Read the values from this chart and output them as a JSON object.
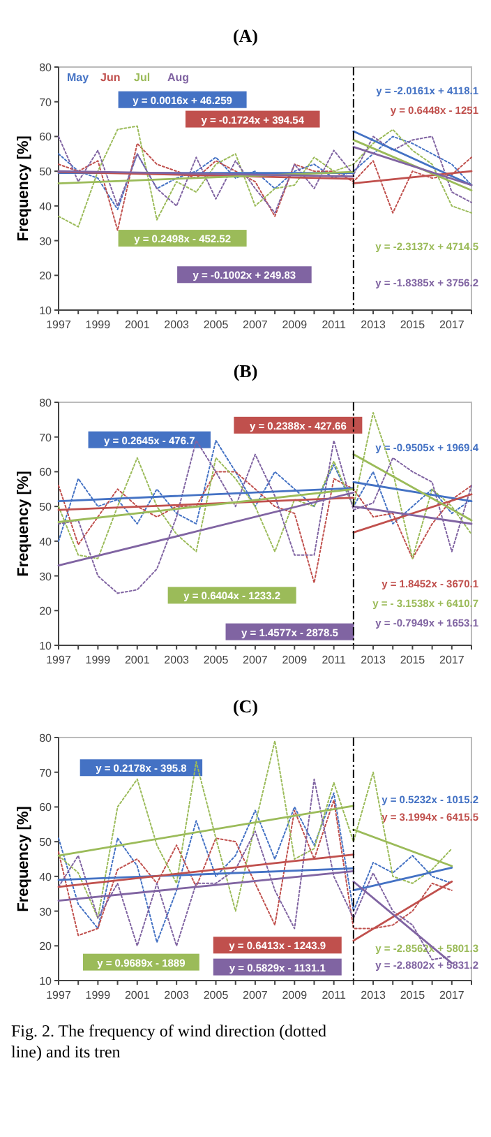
{
  "chart_data": [
    {
      "type": "line",
      "title": "(A)",
      "ylabel": "Frequency [%]",
      "xlim": [
        1997,
        2018
      ],
      "ylim": [
        10,
        80
      ],
      "yticks": [
        10,
        20,
        30,
        40,
        50,
        60,
        70,
        80
      ],
      "xticks": [
        1997,
        {
          "value": 1998,
          "label": null
        },
        1999,
        {
          "value": 2000,
          "label": null
        },
        2001,
        {
          "value": 2002,
          "label": null
        },
        2003,
        {
          "value": 2004,
          "label": null
        },
        2005,
        {
          "value": 2006,
          "label": null
        },
        2007,
        {
          "value": 2008,
          "label": null
        },
        2009,
        {
          "value": 2010,
          "label": null
        },
        2011,
        {
          "value": 2012,
          "label": null
        },
        2013,
        {
          "value": 2014,
          "label": null
        },
        2015,
        {
          "value": 2016,
          "label": null
        },
        2017,
        {
          "value": 2018,
          "label": null
        }
      ],
      "x": [
        1997,
        1998,
        1999,
        2000,
        2001,
        2002,
        2003,
        2004,
        2005,
        2006,
        2007,
        2008,
        2009,
        2010,
        2011,
        2012,
        2013,
        2014,
        2015,
        2016,
        2017,
        2018
      ],
      "legend": "top left",
      "grid": false,
      "marker": "none",
      "ref_lines": [
        {
          "axis": "x",
          "value": 2012,
          "color": "#000000",
          "line_style": "dashed"
        }
      ],
      "series": [
        {
          "name": "May",
          "color": "#4472c4",
          "line_style": "dotted",
          "values": [
            55,
            50,
            48,
            39,
            55,
            45,
            48,
            50,
            54,
            48,
            50,
            45,
            50,
            52,
            48,
            50,
            55,
            60,
            58,
            55,
            52,
            46
          ]
        },
        {
          "name": "Jun",
          "color": "#c0504d",
          "line_style": "dotted",
          "values": [
            52,
            50,
            53,
            33,
            58,
            52,
            50,
            48,
            53,
            50,
            47,
            37,
            52,
            50,
            50,
            47,
            53,
            38,
            50,
            48,
            49,
            54
          ]
        },
        {
          "name": "Jul",
          "color": "#9bbb59",
          "line_style": "dotted",
          "values": [
            37,
            34,
            50,
            62,
            63,
            36,
            47,
            44,
            52,
            55,
            40,
            45,
            46,
            54,
            50,
            52,
            58,
            62,
            56,
            52,
            40,
            38
          ]
        },
        {
          "name": "Aug",
          "color": "#8064a2",
          "line_style": "dotted",
          "values": [
            60,
            47,
            56,
            40,
            55,
            45,
            40,
            54,
            42,
            53,
            45,
            38,
            52,
            45,
            56,
            49,
            60,
            56,
            59,
            60,
            44,
            41
          ]
        },
        {
          "color": "#4472c4",
          "line_style": "solid",
          "x": [
            1997,
            2012
          ],
          "values": [
            49.5,
            49.5
          ]
        },
        {
          "color": "#c0504d",
          "line_style": "solid",
          "x": [
            1997,
            2012
          ],
          "values": [
            49.8,
            47.8
          ]
        },
        {
          "color": "#9bbb59",
          "line_style": "solid",
          "x": [
            1997,
            2012
          ],
          "values": [
            46.5,
            49.8
          ]
        },
        {
          "color": "#8064a2",
          "line_style": "solid",
          "x": [
            1997,
            2012
          ],
          "values": [
            50,
            48.5
          ]
        },
        {
          "color": "#4472c4",
          "line_style": "solid",
          "x": [
            2012,
            2018
          ],
          "values": [
            61.5,
            46
          ]
        },
        {
          "color": "#c0504d",
          "line_style": "solid",
          "x": [
            2012,
            2018
          ],
          "values": [
            46.5,
            50
          ]
        },
        {
          "color": "#9bbb59",
          "line_style": "solid",
          "x": [
            2012,
            2018
          ],
          "values": [
            59,
            44.5
          ]
        },
        {
          "color": "#8064a2",
          "line_style": "solid",
          "x": [
            2012,
            2018
          ],
          "values": [
            57,
            46
          ]
        }
      ],
      "annotations": [
        "y = 0.0016x + 46.259",
        "y = -0.1724x + 394.54",
        "y = 0.2498x - 452.52",
        "y = -0.1002x + 249.83",
        "y = -2.0161x + 4118.1",
        "y = 0.6448x - 1251",
        "y = -2.3137x + 4714.5",
        "y = -1.8385x + 3756.2"
      ]
    },
    {
      "type": "line",
      "title": "(B)",
      "ylabel": "Frequency [%]",
      "xlim": [
        1997,
        2018
      ],
      "ylim": [
        10,
        80
      ],
      "yticks": [
        10,
        20,
        30,
        40,
        50,
        60,
        70,
        80
      ],
      "xticks": [
        1997,
        {
          "value": 1998,
          "label": null
        },
        1999,
        {
          "value": 2000,
          "label": null
        },
        2001,
        {
          "value": 2002,
          "label": null
        },
        2003,
        {
          "value": 2004,
          "label": null
        },
        2005,
        {
          "value": 2006,
          "label": null
        },
        2007,
        {
          "value": 2008,
          "label": null
        },
        2009,
        {
          "value": 2010,
          "label": null
        },
        2011,
        {
          "value": 2012,
          "label": null
        },
        2013,
        {
          "value": 2014,
          "label": null
        },
        2015,
        {
          "value": 2016,
          "label": null
        },
        2017,
        {
          "value": 2018,
          "label": null
        }
      ],
      "x": [
        1997,
        1998,
        1999,
        2000,
        2001,
        2002,
        2003,
        2004,
        2005,
        2006,
        2007,
        2008,
        2009,
        2010,
        2011,
        2012,
        2013,
        2014,
        2015,
        2016,
        2017,
        2018
      ],
      "grid": false,
      "marker": "none",
      "ref_lines": [
        {
          "axis": "x",
          "value": 2012,
          "color": "#000000",
          "line_style": "dashed"
        }
      ],
      "series": [
        {
          "color": "#4472c4",
          "line_style": "dotted",
          "values": [
            40,
            58,
            50,
            52,
            45,
            55,
            48,
            45,
            69,
            60,
            50,
            60,
            55,
            50,
            62,
            50,
            60,
            45,
            50,
            55,
            48,
            52
          ]
        },
        {
          "color": "#c0504d",
          "line_style": "dotted",
          "values": [
            56,
            39,
            47,
            55,
            50,
            47,
            50,
            50,
            60,
            60,
            55,
            50,
            48,
            28,
            58,
            55,
            47,
            48,
            35,
            45,
            52,
            56
          ]
        },
        {
          "color": "#9bbb59",
          "line_style": "dotted",
          "values": [
            50,
            36,
            35,
            50,
            64,
            50,
            42,
            37,
            64,
            58,
            50,
            37,
            52,
            50,
            63,
            50,
            77,
            60,
            35,
            55,
            50,
            42
          ]
        },
        {
          "color": "#8064a2",
          "line_style": "dotted",
          "values": [
            45,
            46,
            30,
            25,
            26,
            32,
            47,
            69,
            60,
            50,
            65,
            53,
            36,
            36,
            69,
            49,
            51,
            64,
            60,
            57,
            37,
            56
          ]
        },
        {
          "color": "#4472c4",
          "line_style": "solid",
          "x": [
            1997,
            2012
          ],
          "values": [
            51.5,
            55.3
          ]
        },
        {
          "color": "#c0504d",
          "line_style": "solid",
          "x": [
            1997,
            2012
          ],
          "values": [
            49,
            52.5
          ]
        },
        {
          "color": "#9bbb59",
          "line_style": "solid",
          "x": [
            1997,
            2012
          ],
          "values": [
            45.5,
            55
          ]
        },
        {
          "color": "#8064a2",
          "line_style": "solid",
          "x": [
            1997,
            2012
          ],
          "values": [
            33,
            54
          ]
        },
        {
          "color": "#4472c4",
          "line_style": "solid",
          "x": [
            2012,
            2018
          ],
          "values": [
            57,
            51.5
          ]
        },
        {
          "color": "#c0504d",
          "line_style": "solid",
          "x": [
            2012,
            2018
          ],
          "values": [
            42.5,
            53.5
          ]
        },
        {
          "color": "#9bbb59",
          "line_style": "solid",
          "x": [
            2012,
            2018
          ],
          "values": [
            65,
            46
          ]
        },
        {
          "color": "#8064a2",
          "line_style": "solid",
          "x": [
            2012,
            2018
          ],
          "values": [
            50,
            45
          ]
        }
      ],
      "annotations": [
        "y = 0.2645x - 476.7",
        "y = 0.2388x - 427.66",
        "y = 0.6404x - 1233.2",
        "y = 1.4577x - 2878.5",
        "y = -0.9505x + 1969.4",
        "y = 1.8452x - 3670.1",
        "y = - 3.1538x  + 6410.7",
        "y = -0.7949x + 1653.1"
      ]
    },
    {
      "type": "line",
      "title": "(C)",
      "ylabel": "Frequency [%]",
      "xlim": [
        1997,
        2018
      ],
      "ylim": [
        10,
        80
      ],
      "yticks": [
        10,
        20,
        30,
        40,
        50,
        60,
        70,
        80
      ],
      "xticks": [
        1997,
        {
          "value": 1998,
          "label": null
        },
        1999,
        {
          "value": 2000,
          "label": null
        },
        2001,
        {
          "value": 2002,
          "label": null
        },
        2003,
        {
          "value": 2004,
          "label": null
        },
        2005,
        {
          "value": 2006,
          "label": null
        },
        2007,
        {
          "value": 2008,
          "label": null
        },
        2009,
        {
          "value": 2010,
          "label": null
        },
        2011,
        {
          "value": 2012,
          "label": null
        },
        2013,
        {
          "value": 2014,
          "label": null
        },
        2015,
        {
          "value": 2016,
          "label": null
        },
        2017,
        {
          "value": 2018,
          "label": null
        }
      ],
      "x": [
        1997,
        1998,
        1999,
        2000,
        2001,
        2002,
        2003,
        2004,
        2005,
        2006,
        2007,
        2008,
        2009,
        2010,
        2011,
        2012,
        2013,
        2014,
        2015,
        2016,
        2017
      ],
      "grid": false,
      "marker": "none",
      "ref_lines": [
        {
          "axis": "x",
          "value": 2012,
          "color": "#000000",
          "line_style": "dashed"
        }
      ],
      "series": [
        {
          "color": "#4472c4",
          "line_style": "dotted",
          "values": [
            51,
            32,
            25,
            51,
            43,
            21,
            36,
            56,
            40,
            46,
            59,
            45,
            60,
            49,
            64,
            30,
            44,
            41,
            46,
            40,
            38
          ]
        },
        {
          "color": "#c0504d",
          "line_style": "dotted",
          "values": [
            47,
            23,
            25,
            42,
            45,
            38,
            49,
            37,
            51,
            50,
            38,
            26,
            59,
            45,
            62,
            25,
            25,
            26,
            30,
            38,
            36
          ]
        },
        {
          "color": "#9bbb59",
          "line_style": "dotted",
          "values": [
            46,
            41,
            28,
            60,
            68,
            49,
            38,
            73,
            51,
            30,
            55,
            79,
            45,
            48,
            67,
            50,
            70,
            40,
            38,
            42,
            48
          ]
        },
        {
          "color": "#8064a2",
          "line_style": "dotted",
          "values": [
            37,
            46,
            28,
            38,
            20,
            38,
            20,
            38,
            38,
            42,
            53,
            36,
            25,
            68,
            40,
            28,
            41,
            30,
            26,
            16,
            17
          ]
        },
        {
          "color": "#4472c4",
          "line_style": "solid",
          "x": [
            1997,
            2012
          ],
          "values": [
            39,
            42.3
          ]
        },
        {
          "color": "#c0504d",
          "line_style": "solid",
          "x": [
            1997,
            2012
          ],
          "values": [
            37,
            46.3
          ]
        },
        {
          "color": "#9bbb59",
          "line_style": "solid",
          "x": [
            1997,
            2012
          ],
          "values": [
            46,
            60.3
          ]
        },
        {
          "color": "#8064a2",
          "line_style": "solid",
          "x": [
            1997,
            2012
          ],
          "values": [
            33,
            41.5
          ]
        },
        {
          "color": "#4472c4",
          "line_style": "solid",
          "x": [
            2012,
            2017
          ],
          "values": [
            36,
            42.5
          ]
        },
        {
          "color": "#c0504d",
          "line_style": "solid",
          "x": [
            2012,
            2017
          ],
          "values": [
            21.5,
            38.5
          ]
        },
        {
          "color": "#9bbb59",
          "line_style": "solid",
          "x": [
            2012,
            2017
          ],
          "values": [
            53.5,
            43
          ]
        },
        {
          "color": "#8064a2",
          "line_style": "solid",
          "x": [
            2012,
            2017
          ],
          "values": [
            38.5,
            15
          ]
        }
      ],
      "annotations": [
        "y = 0.2178x - 395.8",
        "y = 0.6413x - 1243.9",
        "y = 0.9689x - 1889",
        "y = 0.5829x - 1131.1",
        "y = 0.5232x - 1015.2",
        "y = 3.1994x - 6415.5",
        "y = -2.8562x + 5801.3",
        "y = -2.8802x + 5831.2",
        "Fig. 2. The frequency of wind direction (dotted line) and its tren"
      ]
    }
  ]
}
